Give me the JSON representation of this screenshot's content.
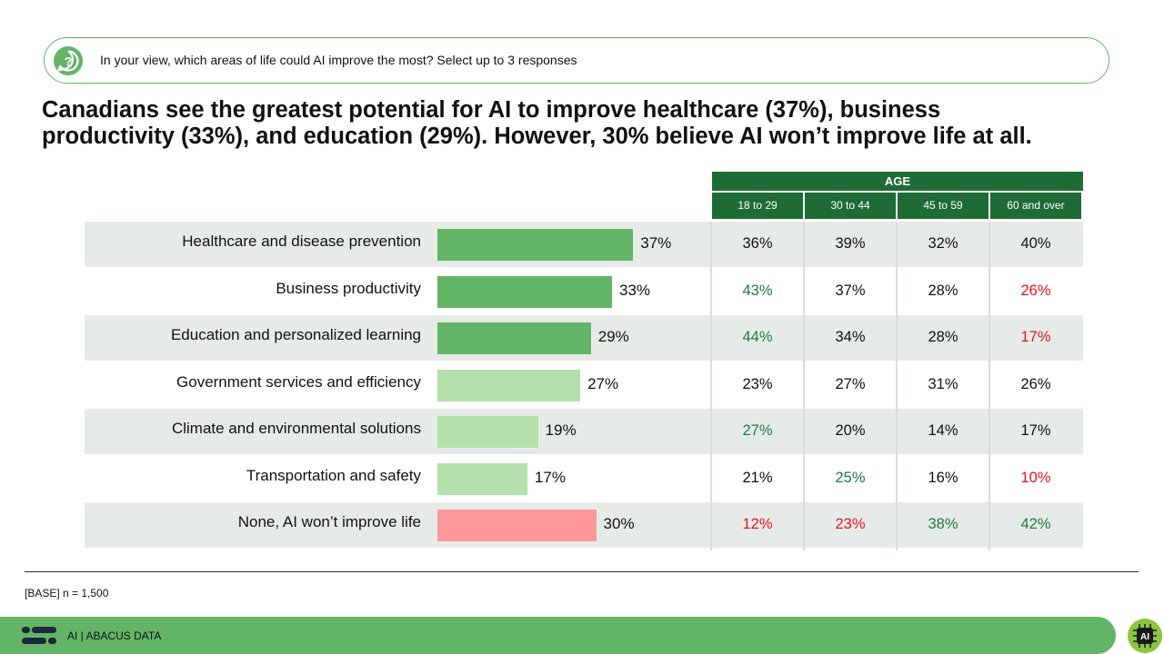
{
  "question": "In your view, which areas of life could AI improve the most? Select up to 3 responses",
  "headline_line1": "Canadians see the greatest potential for AI to improve healthcare (37%), business",
  "headline_line2": "productivity (33%), and education (29%). However, 30% believe AI won’t improve life at all.",
  "table": {
    "group_header": "AGE",
    "columns": [
      "18 to 29",
      "30 to 44",
      "45 to 59",
      "60 and over"
    ]
  },
  "colors": {
    "bar_top": "#63b467",
    "bar_other": "#b5e0ad",
    "bar_none": "#fd9799",
    "sig_high": "#1e7b3b",
    "sig_low": "#e3151a",
    "neutral": "#111111",
    "header_bg": "#1e6b36",
    "band_bg": "#e7ebe8"
  },
  "chart_data": {
    "type": "bar",
    "orientation": "horizontal",
    "categories": [
      "Healthcare and disease prevention",
      "Business productivity",
      "Education and personalized learning",
      "Government services and efficiency",
      "Climate and environmental solutions",
      "Transportation and safety",
      "None, AI won’t improve life"
    ],
    "values": [
      37,
      33,
      29,
      27,
      19,
      17,
      30
    ],
    "value_labels": [
      "37%",
      "33%",
      "29%",
      "27%",
      "19%",
      "17%",
      "30%"
    ],
    "bar_color_keys": [
      "bar_top",
      "bar_top",
      "bar_top",
      "bar_other",
      "bar_other",
      "bar_other",
      "bar_none"
    ],
    "unit": "%",
    "xlim": [
      0,
      55
    ],
    "grid": false,
    "legend": "none",
    "breakdown": {
      "group": "AGE",
      "columns": [
        "18 to 29",
        "30 to 44",
        "45 to 59",
        "60 and over"
      ],
      "rows": [
        [
          {
            "v": "36%",
            "c": "neutral"
          },
          {
            "v": "39%",
            "c": "neutral"
          },
          {
            "v": "32%",
            "c": "neutral"
          },
          {
            "v": "40%",
            "c": "neutral"
          }
        ],
        [
          {
            "v": "43%",
            "c": "sig_high"
          },
          {
            "v": "37%",
            "c": "neutral"
          },
          {
            "v": "28%",
            "c": "neutral"
          },
          {
            "v": "26%",
            "c": "sig_low"
          }
        ],
        [
          {
            "v": "44%",
            "c": "sig_high"
          },
          {
            "v": "34%",
            "c": "neutral"
          },
          {
            "v": "28%",
            "c": "neutral"
          },
          {
            "v": "17%",
            "c": "sig_low"
          }
        ],
        [
          {
            "v": "23%",
            "c": "neutral"
          },
          {
            "v": "27%",
            "c": "neutral"
          },
          {
            "v": "31%",
            "c": "neutral"
          },
          {
            "v": "26%",
            "c": "neutral"
          }
        ],
        [
          {
            "v": "27%",
            "c": "sig_high"
          },
          {
            "v": "20%",
            "c": "neutral"
          },
          {
            "v": "14%",
            "c": "neutral"
          },
          {
            "v": "17%",
            "c": "neutral"
          }
        ],
        [
          {
            "v": "21%",
            "c": "neutral"
          },
          {
            "v": "25%",
            "c": "sig_high"
          },
          {
            "v": "16%",
            "c": "neutral"
          },
          {
            "v": "10%",
            "c": "sig_low"
          }
        ],
        [
          {
            "v": "12%",
            "c": "sig_low"
          },
          {
            "v": "23%",
            "c": "sig_low"
          },
          {
            "v": "38%",
            "c": "sig_high"
          },
          {
            "v": "42%",
            "c": "sig_high"
          }
        ]
      ]
    }
  },
  "base_note": "[BASE] n = 1,500",
  "footer": {
    "text": "AI  |  ABACUS DATA",
    "logo_icon": "abacus-logo-icon",
    "badge_icon": "ai-chip-icon",
    "badge_text": "AI"
  }
}
